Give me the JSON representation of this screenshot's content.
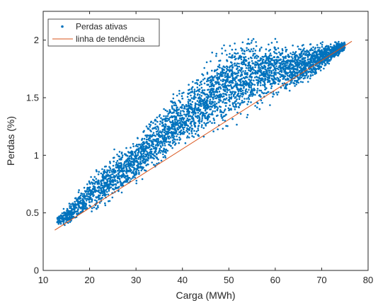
{
  "chart_data": {
    "type": "scatter",
    "title": "",
    "xlabel": "Carga (MWh)",
    "ylabel": "Perdas (%)",
    "xlim": [
      10,
      80
    ],
    "ylim": [
      0,
      2.25
    ],
    "xticks": [
      10,
      20,
      30,
      40,
      50,
      60,
      70,
      80
    ],
    "yticks": [
      0,
      0.5,
      1,
      1.5,
      2
    ],
    "ytick_labels": [
      "0",
      "0.5",
      "1",
      "1.5",
      "2"
    ],
    "grid": false,
    "legend": {
      "placement": "top-left"
    },
    "colors": {
      "scatter": "#0072BD",
      "trend": "#D95319"
    },
    "series": [
      {
        "name": "Perdas ativas",
        "kind": "scatter",
        "point_count": 4000,
        "envelope": [
          {
            "x": 13,
            "y_low": 0.38,
            "y_high": 0.48
          },
          {
            "x": 16,
            "y_low": 0.38,
            "y_high": 0.62
          },
          {
            "x": 20,
            "y_low": 0.45,
            "y_high": 0.85
          },
          {
            "x": 25,
            "y_low": 0.55,
            "y_high": 1.05
          },
          {
            "x": 30,
            "y_low": 0.7,
            "y_high": 1.2
          },
          {
            "x": 35,
            "y_low": 0.85,
            "y_high": 1.45
          },
          {
            "x": 40,
            "y_low": 1.0,
            "y_high": 1.65
          },
          {
            "x": 45,
            "y_low": 1.1,
            "y_high": 1.85
          },
          {
            "x": 50,
            "y_low": 1.2,
            "y_high": 2.05
          },
          {
            "x": 55,
            "y_low": 1.3,
            "y_high": 2.1
          },
          {
            "x": 60,
            "y_low": 1.45,
            "y_high": 2.05
          },
          {
            "x": 65,
            "y_low": 1.55,
            "y_high": 2.0
          },
          {
            "x": 70,
            "y_low": 1.7,
            "y_high": 2.0
          },
          {
            "x": 75,
            "y_low": 1.9,
            "y_high": 2.0
          }
        ]
      },
      {
        "name": "linha de tendência",
        "kind": "line",
        "x": [
          12.5,
          76.5
        ],
        "y": [
          0.35,
          1.99
        ]
      }
    ]
  }
}
